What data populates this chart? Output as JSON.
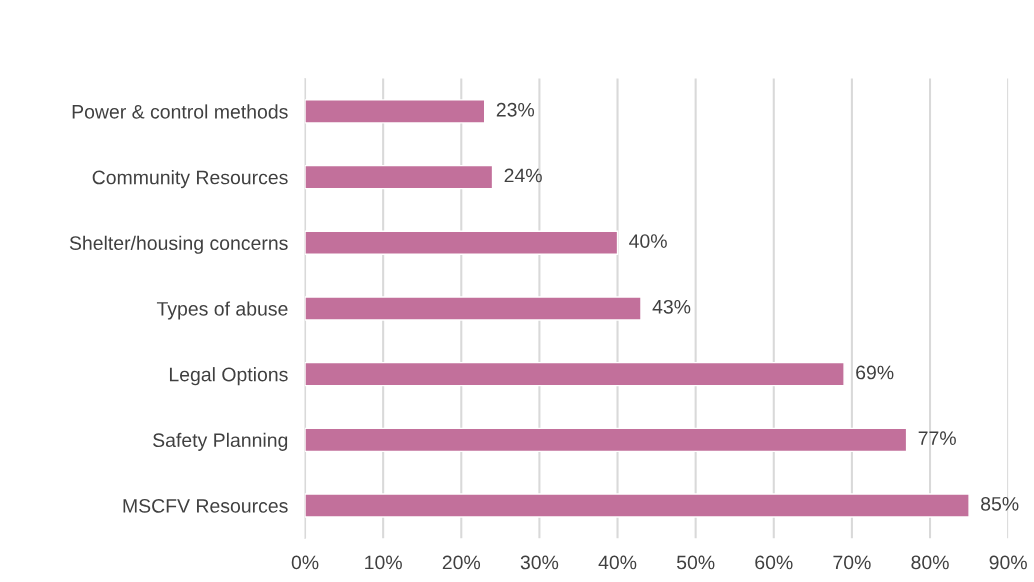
{
  "chart_data": {
    "type": "bar",
    "orientation": "horizontal",
    "categories": [
      "Power & control methods",
      "Community Resources",
      "Shelter/housing concerns",
      "Types of abuse",
      "Legal Options",
      "Safety Planning",
      "MSCFV Resources"
    ],
    "values": [
      23,
      24,
      40,
      43,
      69,
      77,
      85
    ],
    "value_labels": [
      "23%",
      "24%",
      "40%",
      "43%",
      "69%",
      "77%",
      "85%"
    ],
    "color": "#c2709b",
    "xlim": [
      0,
      90
    ],
    "xticks": [
      {
        "value": 0,
        "label": "0%"
      },
      {
        "value": 10,
        "label": "10%"
      },
      {
        "value": 20,
        "label": "20%"
      },
      {
        "value": 30,
        "label": "30%"
      },
      {
        "value": 40,
        "label": "40%"
      },
      {
        "value": 50,
        "label": "50%"
      },
      {
        "value": 60,
        "label": "60%"
      },
      {
        "value": 70,
        "label": "70%"
      },
      {
        "value": 80,
        "label": "80%"
      },
      {
        "value": 90,
        "label": "90%"
      }
    ],
    "grid": "x"
  }
}
